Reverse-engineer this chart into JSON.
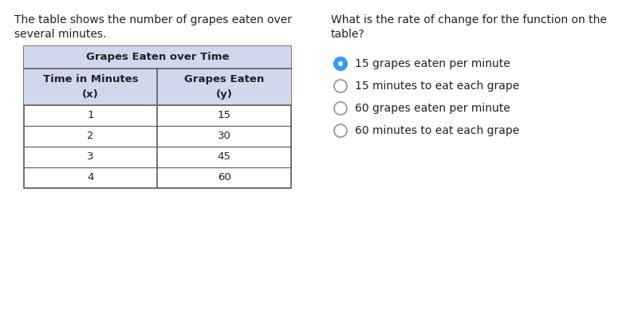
{
  "left_text_line1": "The table shows the number of grapes eaten over",
  "left_text_line2": "several minutes.",
  "question_line1": "What is the rate of change for the function on the",
  "question_line2": "table?",
  "table_title": "Grapes Eaten over Time",
  "col1_header_line1": "Time in Minutes",
  "col1_header_line2": "(x)",
  "col2_header_line1": "Grapes Eaten",
  "col2_header_line2": "(y)",
  "x_values": [
    1,
    2,
    3,
    4
  ],
  "y_values": [
    15,
    30,
    45,
    60
  ],
  "options": [
    "15 grapes eaten per minute",
    "15 minutes to eat each grape",
    "60 grapes eaten per minute",
    "60 minutes to eat each grape"
  ],
  "selected_option": 0,
  "table_header_bg": "#d0d8ee",
  "table_border_color": "#666666",
  "background_color": "#ffffff",
  "text_color": "#222222",
  "selected_circle_fill": "#3399ff",
  "selected_circle_border": "#3399ff",
  "unselected_circle_fill": "#ffffff",
  "unselected_circle_border": "#999999",
  "font_size_text": 10,
  "font_size_table": 9.5,
  "font_size_options": 10
}
